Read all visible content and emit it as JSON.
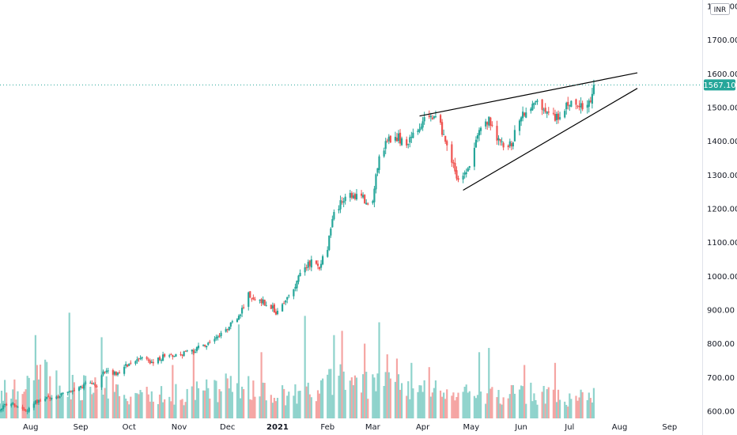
{
  "chart_data": {
    "type": "candlestick",
    "currency": "INR",
    "last_price_label": "1567.10",
    "last_price": 1567.1,
    "ylim": [
      575,
      1810
    ],
    "y_ticks": [
      {
        "value": 600,
        "label": "600.00"
      },
      {
        "value": 700,
        "label": "700.00"
      },
      {
        "value": 800,
        "label": "800.00"
      },
      {
        "value": 900,
        "label": "900.00"
      },
      {
        "value": 1000,
        "label": "1000.00"
      },
      {
        "value": 1100,
        "label": "1100.00"
      },
      {
        "value": 1200,
        "label": "1200.00"
      },
      {
        "value": 1300,
        "label": "1300.00"
      },
      {
        "value": 1400,
        "label": "1400.00"
      },
      {
        "value": 1500,
        "label": "1500.00"
      },
      {
        "value": 1600,
        "label": "1600.00"
      },
      {
        "value": 1700,
        "label": "1700.00"
      },
      {
        "value": 1800,
        "label": "1800.00"
      }
    ],
    "x_ticks": [
      {
        "label": "Aug",
        "date": "2020-08-01",
        "bold": false
      },
      {
        "label": "Sep",
        "date": "2020-09-01",
        "bold": false
      },
      {
        "label": "Oct",
        "date": "2020-10-01",
        "bold": false
      },
      {
        "label": "Nov",
        "date": "2020-11-01",
        "bold": false
      },
      {
        "label": "Dec",
        "date": "2020-12-01",
        "bold": false
      },
      {
        "label": "2021",
        "date": "2021-01-01",
        "bold": true
      },
      {
        "label": "Feb",
        "date": "2021-02-01",
        "bold": false
      },
      {
        "label": "Mar",
        "date": "2021-03-01",
        "bold": false
      },
      {
        "label": "Apr",
        "date": "2021-04-01",
        "bold": false
      },
      {
        "label": "May",
        "date": "2021-05-01",
        "bold": false
      },
      {
        "label": "Jun",
        "date": "2021-06-01",
        "bold": false
      },
      {
        "label": "Jul",
        "date": "2021-07-01",
        "bold": false
      },
      {
        "label": "Aug",
        "date": "2021-08-01",
        "bold": false
      },
      {
        "label": "Sep",
        "date": "2021-09-01",
        "bold": false
      }
    ],
    "close_anchors": [
      [
        "2020-07-13",
        610
      ],
      [
        "2020-07-20",
        625
      ],
      [
        "2020-07-28",
        598
      ],
      [
        "2020-08-05",
        630
      ],
      [
        "2020-08-14",
        645
      ],
      [
        "2020-08-24",
        652
      ],
      [
        "2020-09-01",
        672
      ],
      [
        "2020-09-07",
        688
      ],
      [
        "2020-09-11",
        672
      ],
      [
        "2020-09-16",
        722
      ],
      [
        "2020-09-23",
        712
      ],
      [
        "2020-10-01",
        740
      ],
      [
        "2020-10-09",
        755
      ],
      [
        "2020-10-16",
        745
      ],
      [
        "2020-10-23",
        765
      ],
      [
        "2020-11-02",
        770
      ],
      [
        "2020-11-10",
        780
      ],
      [
        "2020-11-18",
        800
      ],
      [
        "2020-11-25",
        820
      ],
      [
        "2020-12-02",
        855
      ],
      [
        "2020-12-08",
        880
      ],
      [
        "2020-12-14",
        945
      ],
      [
        "2020-12-18",
        925
      ],
      [
        "2020-12-23",
        925
      ],
      [
        "2020-12-28",
        910
      ],
      [
        "2021-01-01",
        890
      ],
      [
        "2021-01-06",
        925
      ],
      [
        "2021-01-12",
        975
      ],
      [
        "2021-01-18",
        1030
      ],
      [
        "2021-01-22",
        1040
      ],
      [
        "2021-01-27",
        1030
      ],
      [
        "2021-02-01",
        1080
      ],
      [
        "2021-02-04",
        1180
      ],
      [
        "2021-02-08",
        1210
      ],
      [
        "2021-02-15",
        1240
      ],
      [
        "2021-02-22",
        1235
      ],
      [
        "2021-02-26",
        1210
      ],
      [
        "2021-03-01",
        1230
      ],
      [
        "2021-03-05",
        1350
      ],
      [
        "2021-03-10",
        1400
      ],
      [
        "2021-03-17",
        1410
      ],
      [
        "2021-03-22",
        1390
      ],
      [
        "2021-03-26",
        1420
      ],
      [
        "2021-04-01",
        1455
      ],
      [
        "2021-04-07",
        1470
      ],
      [
        "2021-04-12",
        1450
      ],
      [
        "2021-04-16",
        1380
      ],
      [
        "2021-04-20",
        1330
      ],
      [
        "2021-04-23",
        1285
      ],
      [
        "2021-04-28",
        1300
      ],
      [
        "2021-05-03",
        1390
      ],
      [
        "2021-05-06",
        1440
      ],
      [
        "2021-05-12",
        1460
      ],
      [
        "2021-05-17",
        1400
      ],
      [
        "2021-05-21",
        1385
      ],
      [
        "2021-05-26",
        1395
      ],
      [
        "2021-06-01",
        1470
      ],
      [
        "2021-06-08",
        1510
      ],
      [
        "2021-06-14",
        1505
      ],
      [
        "2021-06-21",
        1470
      ],
      [
        "2021-06-25",
        1480
      ],
      [
        "2021-06-29",
        1505
      ],
      [
        "2021-07-02",
        1520
      ],
      [
        "2021-07-07",
        1500
      ],
      [
        "2021-07-12",
        1495
      ],
      [
        "2021-07-14",
        1530
      ],
      [
        "2021-07-16",
        1567
      ]
    ],
    "volume_anchors": [
      [
        "2020-07-13",
        0.25
      ],
      [
        "2020-07-28",
        0.32
      ],
      [
        "2020-08-10",
        0.45
      ],
      [
        "2020-08-20",
        0.28
      ],
      [
        "2020-09-01",
        0.3
      ],
      [
        "2020-09-14",
        0.35
      ],
      [
        "2020-10-01",
        0.2
      ],
      [
        "2020-10-20",
        0.24
      ],
      [
        "2020-11-05",
        0.22
      ],
      [
        "2020-11-20",
        0.26
      ],
      [
        "2020-12-05",
        0.3
      ],
      [
        "2020-12-20",
        0.28
      ],
      [
        "2021-01-05",
        0.22
      ],
      [
        "2021-01-20",
        0.24
      ],
      [
        "2021-02-05",
        0.4
      ],
      [
        "2021-02-20",
        0.3
      ],
      [
        "2021-03-05",
        0.32
      ],
      [
        "2021-03-20",
        0.28
      ],
      [
        "2021-04-05",
        0.3
      ],
      [
        "2021-04-20",
        0.25
      ],
      [
        "2021-05-05",
        0.22
      ],
      [
        "2021-05-20",
        0.2
      ],
      [
        "2021-06-05",
        0.24
      ],
      [
        "2021-06-20",
        0.2
      ],
      [
        "2021-07-05",
        0.2
      ],
      [
        "2021-07-16",
        0.2
      ]
    ],
    "volume_spikes": [
      [
        "2020-08-04",
        0.78
      ],
      [
        "2020-08-10",
        0.55
      ],
      [
        "2020-08-25",
        0.99
      ],
      [
        "2020-09-14",
        0.76
      ],
      [
        "2020-10-28",
        0.5
      ],
      [
        "2020-11-10",
        0.62
      ],
      [
        "2020-11-30",
        0.42
      ],
      [
        "2020-12-08",
        0.88
      ],
      [
        "2020-12-22",
        0.62
      ],
      [
        "2021-01-18",
        0.96
      ],
      [
        "2021-02-05",
        0.78
      ],
      [
        "2021-02-10",
        0.82
      ],
      [
        "2021-02-24",
        0.7
      ],
      [
        "2021-03-05",
        0.9
      ],
      [
        "2021-03-10",
        0.6
      ],
      [
        "2021-03-16",
        0.56
      ],
      [
        "2021-03-25",
        0.52
      ],
      [
        "2021-04-05",
        0.48
      ],
      [
        "2021-05-06",
        0.62
      ],
      [
        "2021-05-12",
        0.66
      ],
      [
        "2021-06-03",
        0.5
      ],
      [
        "2021-06-22",
        0.52
      ]
    ],
    "trendlines": [
      {
        "name": "upper-resistance",
        "points": [
          [
            "2021-03-30",
            1475
          ],
          [
            "2021-08-12",
            1603
          ]
        ]
      },
      {
        "name": "lower-support",
        "points": [
          [
            "2021-04-26",
            1255
          ],
          [
            "2021-08-12",
            1557
          ]
        ]
      }
    ],
    "colors": {
      "up": "#26a69a",
      "down": "#ef5350",
      "vol_up": "#8fd3cc",
      "vol_down": "#f5a5a3",
      "price_line": "#26a69a",
      "trendline": "#000000",
      "axis_text": "#131722"
    }
  }
}
